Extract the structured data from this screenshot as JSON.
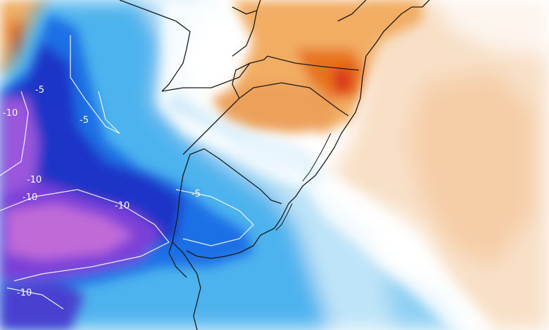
{
  "map": {
    "contour_labels": [
      "-5",
      "-10",
      "-5",
      "-10",
      "-10",
      "-10",
      "-5",
      "-10"
    ],
    "colors": {
      "ocean_white": "#ffffff",
      "warm_light": "#f7dcc0",
      "warm_medium": "#f2ad63",
      "warm_strong": "#e8731f",
      "warm_peak": "#d9381e",
      "cold_light": "#bfe4f8",
      "cold_medium": "#4db3ee",
      "cold_strong": "#1f6fe5",
      "cold_deep": "#1a35c8",
      "cold_purple": "#7b3fd8",
      "cold_magenta": "#c06ad8",
      "borders": "#1a1a1a"
    }
  }
}
